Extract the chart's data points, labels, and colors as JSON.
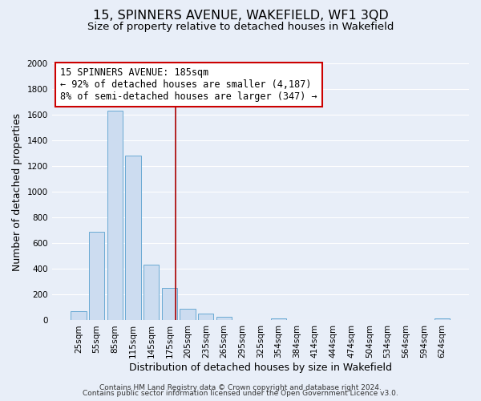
{
  "title": "15, SPINNERS AVENUE, WAKEFIELD, WF1 3QD",
  "subtitle": "Size of property relative to detached houses in Wakefield",
  "xlabel": "Distribution of detached houses by size in Wakefield",
  "ylabel": "Number of detached properties",
  "bar_color": "#ccdcf0",
  "bar_edge_color": "#6aaad4",
  "background_color": "#e8eef8",
  "grid_color": "#ffffff",
  "categories": [
    "25sqm",
    "55sqm",
    "85sqm",
    "115sqm",
    "145sqm",
    "175sqm",
    "205sqm",
    "235sqm",
    "265sqm",
    "295sqm",
    "325sqm",
    "354sqm",
    "384sqm",
    "414sqm",
    "444sqm",
    "474sqm",
    "504sqm",
    "534sqm",
    "564sqm",
    "594sqm",
    "624sqm"
  ],
  "values": [
    70,
    690,
    1630,
    1285,
    435,
    250,
    90,
    52,
    30,
    0,
    0,
    15,
    0,
    0,
    0,
    0,
    0,
    0,
    0,
    0,
    15
  ],
  "ylim": [
    0,
    2000
  ],
  "yticks": [
    0,
    200,
    400,
    600,
    800,
    1000,
    1200,
    1400,
    1600,
    1800,
    2000
  ],
  "vline_color": "#aa0000",
  "annotation_line1": "15 SPINNERS AVENUE: 185sqm",
  "annotation_line2": "← 92% of detached houses are smaller (4,187)",
  "annotation_line3": "8% of semi-detached houses are larger (347) →",
  "annotation_box_color": "#ffffff",
  "annotation_box_edge_color": "#cc0000",
  "footer_line1": "Contains HM Land Registry data © Crown copyright and database right 2024.",
  "footer_line2": "Contains public sector information licensed under the Open Government Licence v3.0.",
  "title_fontsize": 11.5,
  "subtitle_fontsize": 9.5,
  "annotation_fontsize": 8.5,
  "axis_label_fontsize": 9,
  "tick_fontsize": 7.5,
  "footer_fontsize": 6.5
}
